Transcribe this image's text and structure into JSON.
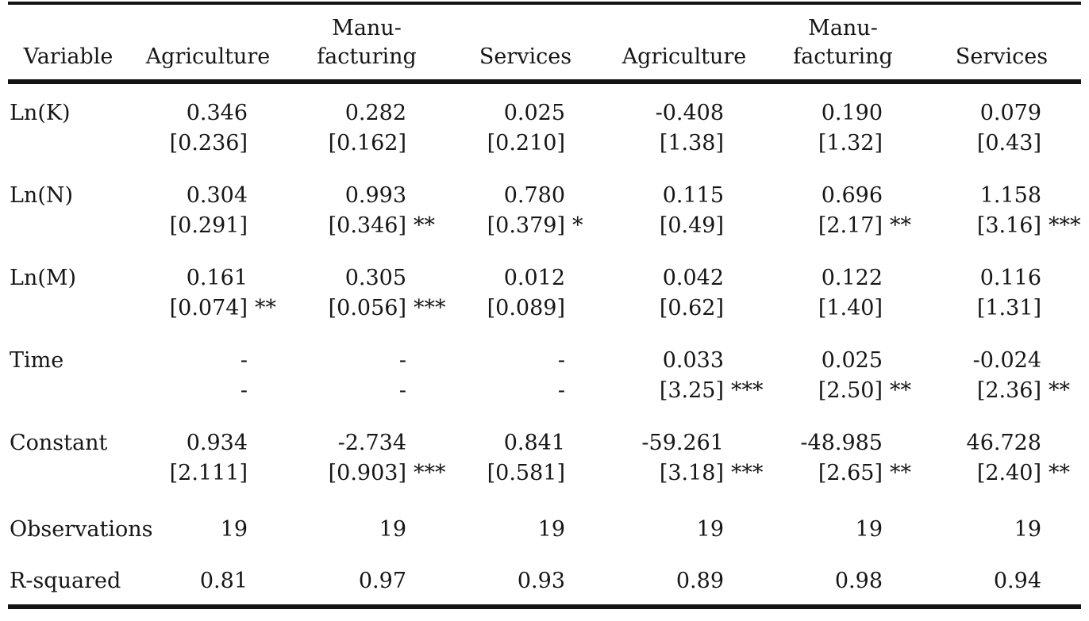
{
  "table": {
    "header": {
      "variable": "Variable",
      "columns": [
        {
          "top": "",
          "bottom": "Agriculture"
        },
        {
          "top": "Manu-",
          "bottom": "facturing"
        },
        {
          "top": "",
          "bottom": "Services"
        },
        {
          "top": "",
          "bottom": "Agriculture"
        },
        {
          "top": "Manu-",
          "bottom": "facturing"
        },
        {
          "top": "",
          "bottom": "Services"
        }
      ]
    },
    "rows": [
      {
        "label": "Ln(K)",
        "cells": [
          {
            "coef": "0.346",
            "se": "[0.236]",
            "stars": ""
          },
          {
            "coef": "0.282",
            "se": "[0.162]",
            "stars": ""
          },
          {
            "coef": "0.025",
            "se": "[0.210]",
            "stars": ""
          },
          {
            "coef": "-0.408",
            "se": "[1.38]",
            "stars": ""
          },
          {
            "coef": "0.190",
            "se": "[1.32]",
            "stars": ""
          },
          {
            "coef": "0.079",
            "se": "[0.43]",
            "stars": ""
          }
        ]
      },
      {
        "label": "Ln(N)",
        "cells": [
          {
            "coef": "0.304",
            "se": "[0.291]",
            "stars": ""
          },
          {
            "coef": "0.993",
            "se": "[0.346]",
            "stars": "**"
          },
          {
            "coef": "0.780",
            "se": "[0.379]",
            "stars": "*"
          },
          {
            "coef": "0.115",
            "se": "[0.49]",
            "stars": ""
          },
          {
            "coef": "0.696",
            "se": "[2.17]",
            "stars": "**"
          },
          {
            "coef": "1.158",
            "se": "[3.16]",
            "stars": "***"
          }
        ]
      },
      {
        "label": "Ln(M)",
        "cells": [
          {
            "coef": "0.161",
            "se": "[0.074]",
            "stars": "**"
          },
          {
            "coef": "0.305",
            "se": "[0.056]",
            "stars": "***"
          },
          {
            "coef": "0.012",
            "se": "[0.089]",
            "stars": ""
          },
          {
            "coef": "0.042",
            "se": "[0.62]",
            "stars": ""
          },
          {
            "coef": "0.122",
            "se": "[1.40]",
            "stars": ""
          },
          {
            "coef": "0.116",
            "se": "[1.31]",
            "stars": ""
          }
        ]
      },
      {
        "label": "Time",
        "cells": [
          {
            "coef": "-",
            "se": "-",
            "stars": ""
          },
          {
            "coef": "-",
            "se": "-",
            "stars": ""
          },
          {
            "coef": "-",
            "se": "-",
            "stars": ""
          },
          {
            "coef": "0.033",
            "se": "[3.25]",
            "stars": "***"
          },
          {
            "coef": "0.025",
            "se": "[2.50]",
            "stars": "**"
          },
          {
            "coef": "-0.024",
            "se": "[2.36]",
            "stars": "**"
          }
        ]
      },
      {
        "label": "Constant",
        "cells": [
          {
            "coef": "0.934",
            "se": "[2.111]",
            "stars": ""
          },
          {
            "coef": "-2.734",
            "se": "[0.903]",
            "stars": "***"
          },
          {
            "coef": "0.841",
            "se": "[0.581]",
            "stars": ""
          },
          {
            "coef": "-59.261",
            "se": "[3.18]",
            "stars": "***"
          },
          {
            "coef": "-48.985",
            "se": "[2.65]",
            "stars": "**"
          },
          {
            "coef": "46.728",
            "se": "[2.40]",
            "stars": "**"
          }
        ]
      }
    ],
    "stats": [
      {
        "label": "Observations",
        "values": [
          "19",
          "19",
          "19",
          "19",
          "19",
          "19"
        ]
      },
      {
        "label": "R-squared",
        "values": [
          "0.81",
          "0.97",
          "0.93",
          "0.89",
          "0.98",
          "0.94"
        ]
      }
    ]
  }
}
